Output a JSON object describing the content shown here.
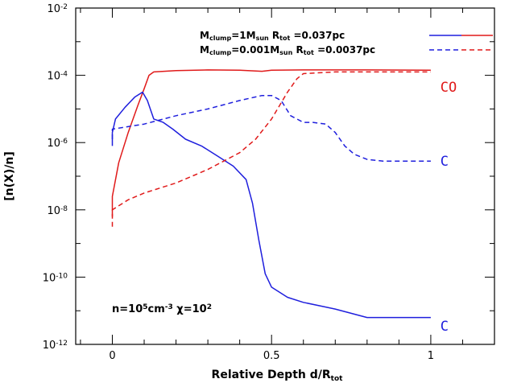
{
  "chart_data": {
    "type": "line",
    "title": "",
    "xlabel": {
      "main": "Relative Depth d/R",
      "sub": "tot"
    },
    "ylabel": "[n(X)/n]",
    "xlim": [
      -0.115,
      1.2
    ],
    "ylim_log10": [
      -12,
      -2
    ],
    "log_y": true,
    "x_ticks": [
      {
        "value": 0,
        "label": "0"
      },
      {
        "value": 0.5,
        "label": "0.5"
      },
      {
        "value": 1,
        "label": "1"
      }
    ],
    "y_ticks": [
      {
        "exp": -2,
        "base": "10",
        "sup": "-2"
      },
      {
        "exp": -4,
        "base": "10",
        "sup": "-4"
      },
      {
        "exp": -6,
        "base": "10",
        "sup": "-6"
      },
      {
        "exp": -8,
        "base": "10",
        "sup": "-8"
      },
      {
        "exp": -10,
        "base": "10",
        "sup": "-10"
      },
      {
        "exp": -12,
        "base": "10",
        "sup": "-12"
      }
    ],
    "legend": {
      "placement": "top-right",
      "entries": [
        {
          "parts": [
            {
              "t": "M"
            },
            {
              "t": "clump",
              "sub": true
            },
            {
              "t": "=1M"
            },
            {
              "t": "sun",
              "sub": true
            },
            {
              "t": " R"
            },
            {
              "t": "tot",
              "sub": true
            },
            {
              "t": " =0.037pc"
            }
          ],
          "style": "solid",
          "colors": [
            "#1f1fdd",
            "#e01a1a"
          ]
        },
        {
          "parts": [
            {
              "t": "M"
            },
            {
              "t": "clump",
              "sub": true
            },
            {
              "t": "=0.001M"
            },
            {
              "t": "sun",
              "sub": true
            },
            {
              "t": " R"
            },
            {
              "t": "tot",
              "sub": true
            },
            {
              "t": " =0.0037pc"
            }
          ],
          "style": "dashed",
          "colors": [
            "#1f1fdd",
            "#e01a1a"
          ]
        }
      ]
    },
    "annotation": {
      "parts": [
        {
          "t": "n=10"
        },
        {
          "t": "5",
          "sup": true
        },
        {
          "t": "cm"
        },
        {
          "t": "-3",
          "sup": true
        },
        {
          "t": " χ=10"
        },
        {
          "t": "2",
          "sup": true
        }
      ]
    },
    "series_labels": [
      {
        "text": "CO",
        "color": "#e01a1a",
        "x": 1.03,
        "log_y": -4.35
      },
      {
        "text": "C",
        "color": "#1f1fdd",
        "x": 1.03,
        "log_y": -6.55
      },
      {
        "text": "C",
        "color": "#1f1fdd",
        "x": 1.03,
        "log_y": -11.45
      }
    ],
    "series": [
      {
        "species": "CO",
        "model": "1M_sun",
        "style": "solid",
        "color": "#e01a1a",
        "x": [
          0,
          0,
          0.02,
          0.05,
          0.08,
          0.1,
          0.115,
          0.13,
          0.2,
          0.3,
          0.4,
          0.47,
          0.5,
          0.6,
          0.8,
          1.0
        ],
        "log_y": [
          -8.2,
          -7.6,
          -6.6,
          -5.7,
          -4.9,
          -4.4,
          -4.0,
          -3.9,
          -3.86,
          -3.84,
          -3.85,
          -3.88,
          -3.85,
          -3.84,
          -3.84,
          -3.85
        ]
      },
      {
        "species": "C",
        "model": "1M_sun",
        "style": "solid",
        "color": "#1f1fdd",
        "x": [
          0,
          0,
          0.01,
          0.04,
          0.07,
          0.095,
          0.11,
          0.13,
          0.16,
          0.19,
          0.23,
          0.28,
          0.33,
          0.38,
          0.42,
          0.44,
          0.46,
          0.48,
          0.5,
          0.55,
          0.6,
          0.7,
          0.8,
          0.85,
          1.0
        ],
        "log_y": [
          -6.1,
          -5.7,
          -5.3,
          -4.95,
          -4.65,
          -4.5,
          -4.75,
          -5.3,
          -5.4,
          -5.6,
          -5.9,
          -6.1,
          -6.4,
          -6.7,
          -7.1,
          -7.8,
          -8.9,
          -9.9,
          -10.3,
          -10.6,
          -10.75,
          -10.95,
          -11.2,
          -11.2,
          -11.2
        ]
      },
      {
        "species": "CO",
        "model": "0.001M_sun",
        "style": "dashed",
        "color": "#e01a1a",
        "x": [
          0,
          0,
          0.05,
          0.1,
          0.2,
          0.3,
          0.4,
          0.45,
          0.5,
          0.55,
          0.58,
          0.6,
          0.7,
          0.8,
          1.0
        ],
        "log_y": [
          -8.5,
          -8.0,
          -7.7,
          -7.5,
          -7.2,
          -6.8,
          -6.3,
          -5.9,
          -5.3,
          -4.5,
          -4.1,
          -3.95,
          -3.9,
          -3.9,
          -3.9
        ]
      },
      {
        "species": "C",
        "model": "0.001M_sun",
        "style": "dashed",
        "color": "#1f1fdd",
        "x": [
          0,
          0,
          0.1,
          0.2,
          0.3,
          0.4,
          0.47,
          0.5,
          0.53,
          0.56,
          0.6,
          0.63,
          0.67,
          0.7,
          0.73,
          0.76,
          0.8,
          0.85,
          0.9,
          1.0
        ],
        "log_y": [
          -5.9,
          -5.6,
          -5.45,
          -5.2,
          -5.0,
          -4.75,
          -4.6,
          -4.6,
          -4.75,
          -5.2,
          -5.4,
          -5.4,
          -5.45,
          -5.7,
          -6.1,
          -6.35,
          -6.5,
          -6.55,
          -6.55,
          -6.55
        ]
      }
    ]
  }
}
